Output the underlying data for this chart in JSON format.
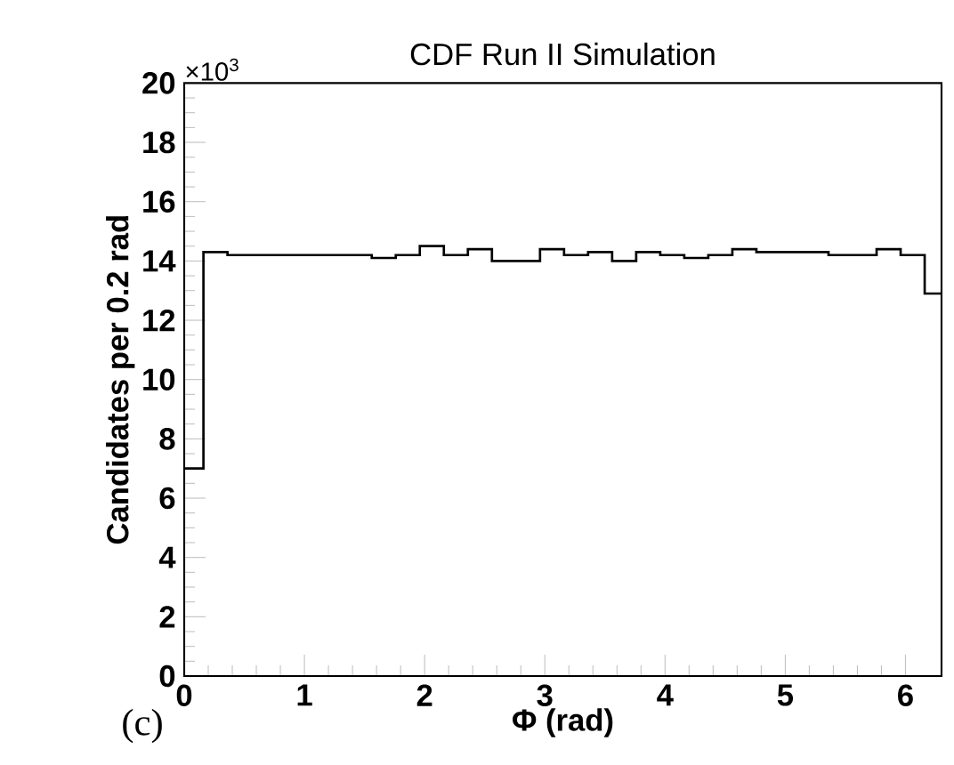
{
  "chart_data": {
    "type": "histogram",
    "title": "CDF Run II Simulation",
    "xlabel": "Φ (rad)",
    "ylabel": "Candidates per 0.2 rad",
    "annotations": [
      "×10$^{3}$",
      "(c)"
    ],
    "bins": [
      0,
      0.16,
      0.36,
      0.56,
      0.76,
      0.96,
      1.16,
      1.36,
      1.56,
      1.76,
      1.96,
      2.16,
      2.36,
      2.56,
      2.76,
      2.96,
      3.16,
      3.36,
      3.56,
      3.76,
      3.96,
      4.16,
      4.36,
      4.56,
      4.76,
      4.96,
      5.16,
      5.36,
      5.56,
      5.76,
      5.96,
      6.16,
      6.3
    ],
    "values": [
      7.0,
      14.3,
      14.2,
      14.2,
      14.2,
      14.2,
      14.2,
      14.2,
      14.1,
      14.2,
      14.5,
      14.2,
      14.4,
      14.0,
      14.0,
      14.4,
      14.2,
      14.3,
      14.0,
      14.3,
      14.2,
      14.1,
      14.2,
      14.4,
      14.3,
      14.3,
      14.3,
      14.2,
      14.2,
      14.4,
      14.2,
      12.9
    ],
    "color": "#000000",
    "xlim": [
      0,
      6.3
    ],
    "ylim": [
      0,
      20
    ],
    "xticks": [
      0,
      1,
      2,
      3,
      4,
      5,
      6
    ],
    "yticks": [
      0,
      2,
      4,
      6,
      8,
      10,
      12,
      14,
      16,
      18,
      20
    ]
  }
}
